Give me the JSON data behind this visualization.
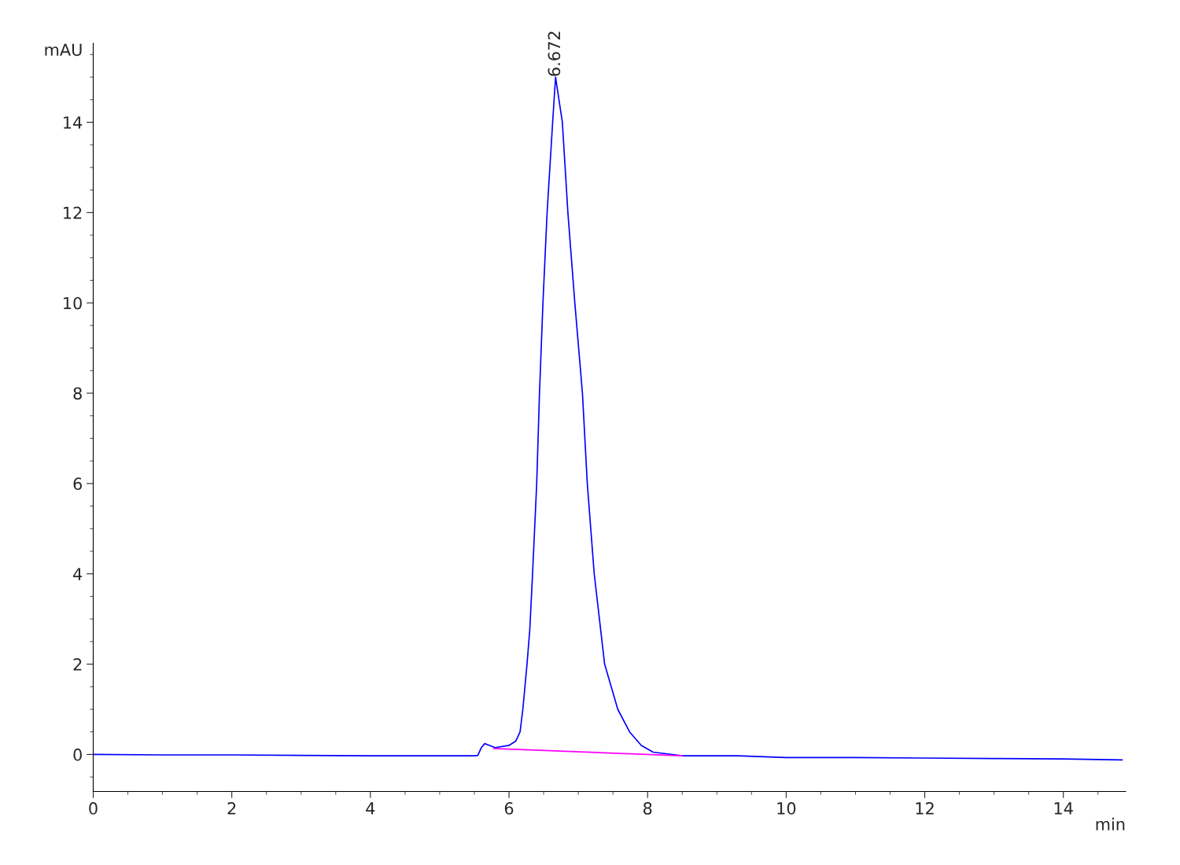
{
  "chart_data": {
    "type": "line",
    "xlabel": "min",
    "ylabel": "mAU",
    "xlim": [
      0,
      14.9
    ],
    "ylim": [
      -0.82,
      15.75
    ],
    "xticks": [
      0,
      2,
      4,
      6,
      8,
      10,
      12,
      14
    ],
    "yticks": [
      0,
      2,
      4,
      6,
      8,
      10,
      12,
      14
    ],
    "grid": false,
    "marker": "none",
    "line_style": "solid",
    "series": [
      {
        "color": "#0000ff",
        "x": [
          0,
          1,
          2,
          3,
          4,
          5,
          5.5,
          5.55,
          5.6,
          5.65,
          5.72,
          5.8,
          6.0,
          6.1,
          6.16,
          6.2,
          6.26,
          6.3,
          6.34,
          6.4,
          6.44,
          6.49,
          6.55,
          6.63,
          6.672,
          6.77,
          6.85,
          6.95,
          7.06,
          7.13,
          7.23,
          7.38,
          7.57,
          7.74,
          7.91,
          8.08,
          8.5,
          9.3,
          10,
          11,
          12,
          13,
          14,
          14.85
        ],
        "values": [
          0,
          -0.01,
          -0.01,
          -0.02,
          -0.03,
          -0.03,
          -0.03,
          -0.02,
          0.15,
          0.24,
          0.2,
          0.15,
          0.2,
          0.3,
          0.5,
          1,
          2,
          2.76,
          4,
          6,
          8,
          10,
          12,
          14,
          15.0,
          14,
          12,
          10,
          8,
          6,
          4,
          2,
          1,
          0.5,
          0.2,
          0.05,
          -0.03,
          -0.03,
          -0.07,
          -0.07,
          -0.08,
          -0.09,
          -0.1,
          -0.12
        ]
      },
      {
        "color": "#ff00ff",
        "x": [
          5.78,
          8.5
        ],
        "values": [
          0.13,
          -0.03
        ]
      }
    ],
    "annotations": [
      {
        "text": "6.672",
        "x": 6.672,
        "y": 15.0
      }
    ]
  }
}
